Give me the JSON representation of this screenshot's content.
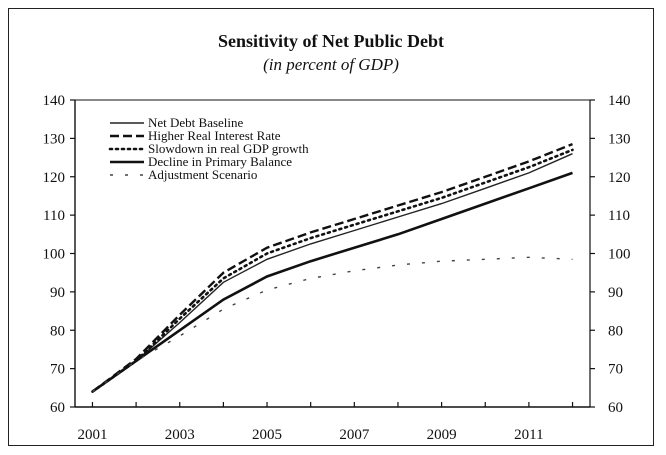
{
  "chart_data": {
    "type": "line",
    "title": "Sensitivity of Net Public Debt",
    "subtitle": "(in percent of GDP)",
    "x": [
      2001,
      2002,
      2003,
      2004,
      2005,
      2006,
      2007,
      2008,
      2009,
      2010,
      2011,
      2012
    ],
    "x_tick_labels": [
      "2001",
      "2003",
      "2005",
      "2007",
      "2009",
      "2011"
    ],
    "y_tick_labels": [
      "60",
      "70",
      "80",
      "90",
      "100",
      "110",
      "120",
      "130",
      "140"
    ],
    "ylim": [
      60,
      140
    ],
    "xlim": [
      2000.6,
      2012.4
    ],
    "grid": false,
    "legend_position": "top-left",
    "series": [
      {
        "name": "Net Debt Baseline",
        "style": "solid-thin",
        "values": [
          64,
          72,
          82,
          92.5,
          98.5,
          102.5,
          106,
          109.5,
          113,
          117,
          121,
          126
        ]
      },
      {
        "name": "Higher Real Interest Rate",
        "style": "dashed",
        "values": [
          64,
          72.5,
          84,
          95,
          101.5,
          105.5,
          109,
          112.5,
          116,
          120,
          124,
          128.5
        ]
      },
      {
        "name": "Slowdown in real GDP growth",
        "style": "dotted",
        "values": [
          64,
          72,
          83,
          93.5,
          100,
          104,
          107.5,
          111,
          114.5,
          118.5,
          122.5,
          127
        ]
      },
      {
        "name": "Decline in Primary Balance",
        "style": "solid-thick",
        "values": [
          64,
          72,
          80,
          88,
          94,
          98,
          101.5,
          105,
          109,
          113,
          117,
          121
        ]
      },
      {
        "name": "Adjustment Scenario",
        "style": "sparse-dashes",
        "values": [
          64,
          72,
          78.5,
          85.5,
          90.5,
          93.5,
          95.5,
          97,
          98,
          98.5,
          99,
          98.5
        ]
      }
    ]
  }
}
